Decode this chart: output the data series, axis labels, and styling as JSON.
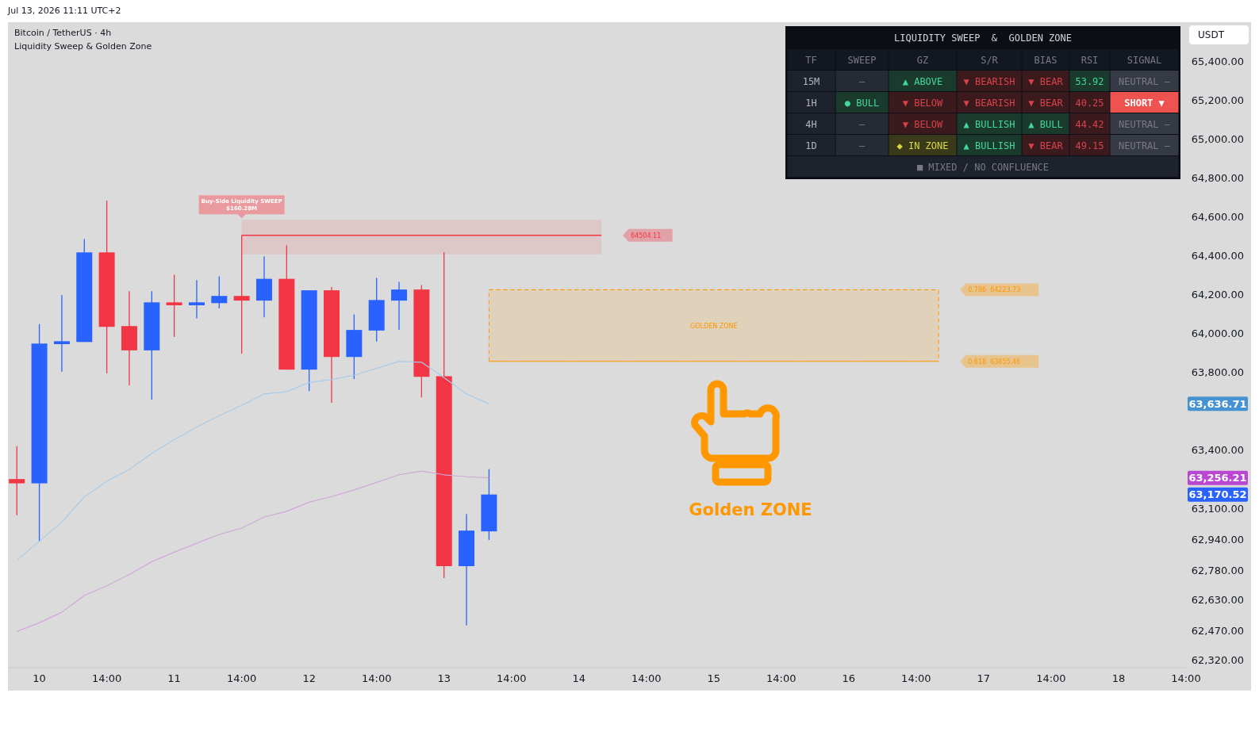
{
  "chart_data": [
    {
      "type": "candlestick",
      "title": "Bitcoin / TetherUS · 4h",
      "subtitle": "Liquidity Sweep & Golden Zone",
      "ylabel": "USDT",
      "categories": [
        null,
        "10",
        null,
        null,
        "14:00",
        null,
        null,
        "11",
        null,
        null,
        "14:00",
        null,
        null,
        "12",
        null,
        null,
        "14:00",
        null,
        null,
        "13",
        null,
        null,
        "14:00",
        null,
        null,
        "14",
        null,
        null,
        "14:00",
        null,
        null,
        "15",
        null,
        null,
        "14:00",
        null,
        null,
        "16",
        null,
        null,
        "14:00",
        null,
        null,
        "17",
        null,
        null,
        "14:00",
        null,
        null,
        "18",
        null,
        null,
        "14:00"
      ],
      "ohlc": [
        [
          63250,
          63419,
          63064,
          63228
        ],
        [
          63228,
          64047,
          62930,
          63947
        ],
        [
          63944,
          64196,
          63802,
          63959
        ],
        [
          63955,
          64485,
          63955,
          64416
        ],
        [
          64416,
          64682,
          63794,
          64033
        ],
        [
          64037,
          64216,
          63732,
          63912
        ],
        [
          63912,
          64216,
          63659,
          64159
        ],
        [
          64159,
          64301,
          63981,
          64144
        ],
        [
          64144,
          64273,
          64077,
          64159
        ],
        [
          64155,
          64293,
          64128,
          64192
        ],
        [
          64192,
          64504,
          63895,
          64168
        ],
        [
          64168,
          64396,
          64082,
          64280
        ],
        [
          64280,
          64452,
          63813,
          63813
        ],
        [
          63813,
          64221,
          63702,
          64221
        ],
        [
          64221,
          64238,
          63642,
          63878
        ],
        [
          63878,
          64097,
          63765,
          64017
        ],
        [
          64014,
          64285,
          63957,
          64171
        ],
        [
          64168,
          64264,
          64017,
          64225
        ],
        [
          64225,
          64248,
          63670,
          63776
        ],
        [
          63779,
          64416,
          62741,
          62802
        ],
        [
          62802,
          63070,
          62497,
          62985
        ],
        [
          62981,
          63301,
          62937,
          63170.52
        ],
        null,
        null,
        null,
        null,
        null,
        null,
        null,
        null,
        null,
        null,
        null,
        null,
        null,
        null,
        null,
        null,
        null,
        null,
        null,
        null,
        null,
        null,
        null,
        null,
        null,
        null,
        null,
        null,
        null,
        null,
        null
      ],
      "colors": [
        "#f23645",
        "#2962ff",
        "#2962ff",
        "#2962ff",
        "#f23645",
        "#f23645",
        "#2962ff",
        "#f23645",
        "#2962ff",
        "#2962ff",
        "#f23645",
        "#2962ff",
        "#f23645",
        "#2962ff",
        "#f23645",
        "#2962ff",
        "#2962ff",
        "#2962ff",
        "#f23645",
        "#f23645",
        "#2962ff",
        "#2962ff",
        null,
        null,
        null,
        null,
        null,
        null,
        null,
        null,
        null,
        null,
        null,
        null,
        null,
        null,
        null,
        null,
        null,
        null,
        null,
        null,
        null,
        null,
        null,
        null,
        null,
        null,
        null,
        null,
        null,
        null,
        null
      ],
      "series": [
        {
          "type": "line",
          "color": "#a8cbe8",
          "values": [
            62832,
            62930,
            63029,
            63158,
            63239,
            63300,
            63382,
            63453,
            63518,
            63576,
            63629,
            63688,
            63699,
            63747,
            63762,
            63784,
            63819,
            63855,
            63851,
            63772,
            63688,
            63636.71,
            null,
            null,
            null,
            null,
            null,
            null,
            null,
            null,
            null,
            null,
            null,
            null,
            null,
            null,
            null,
            null,
            null,
            null,
            null,
            null,
            null,
            null,
            null,
            null,
            null,
            null,
            null,
            null,
            null,
            null,
            null
          ]
        },
        {
          "type": "line",
          "color": "#d0a8d8",
          "values": [
            62466,
            62511,
            62565,
            62651,
            62701,
            62759,
            62825,
            62874,
            62920,
            62965,
            62998,
            63055,
            63084,
            63131,
            63160,
            63194,
            63233,
            63272,
            63291,
            63272,
            63262,
            63256.21,
            null,
            null,
            null,
            null,
            null,
            null,
            null,
            null,
            null,
            null,
            null,
            null,
            null,
            null,
            null,
            null,
            null,
            null,
            null,
            null,
            null,
            null,
            null,
            null,
            null,
            null,
            null,
            null,
            null,
            null,
            null
          ]
        }
      ],
      "ylim": [
        62280,
        65600
      ],
      "yticks": [
        {
          "value": 62320,
          "label": "62,320.00"
        },
        {
          "value": 62470,
          "label": "62,470.00"
        },
        {
          "value": 62630,
          "label": "62,630.00"
        },
        {
          "value": 62780,
          "label": "62,780.00"
        },
        {
          "value": 62940,
          "label": "62,940.00"
        },
        {
          "value": 63100,
          "label": "63,100.00"
        },
        {
          "value": 63400,
          "label": "63,400.00"
        },
        {
          "value": 63800,
          "label": "63,800.00"
        },
        {
          "value": 64000,
          "label": "64,000.00"
        },
        {
          "value": 64200,
          "label": "64,200.00"
        },
        {
          "value": 64400,
          "label": "64,400.00"
        },
        {
          "value": 64600,
          "label": "64,600.00"
        },
        {
          "value": 64800,
          "label": "64,800.00"
        },
        {
          "value": 65000,
          "label": "65,000.00"
        },
        {
          "value": 65200,
          "label": "65,200.00"
        },
        {
          "value": 65400,
          "label": "65,400.00"
        }
      ],
      "ref_lines": [
        {
          "axis": "y",
          "value": 64504.11,
          "label": "64504.11",
          "color": "#f23645"
        },
        {
          "axis": "y",
          "value": 64223.73,
          "label": "0.786  64223.73",
          "color": "#ff9800",
          "line_style": "dashed"
        },
        {
          "axis": "y",
          "value": 63855.46,
          "label": "0.618  63855.46",
          "color": "#ff9800",
          "line_style": "dashed"
        }
      ],
      "bands": [
        {
          "axis": "y",
          "from": 64406,
          "to": 64583,
          "label": "Buy-Side Liquidity SWEEP\n$160.28M",
          "color": "#f23645"
        },
        {
          "axis": "y",
          "from": 63855.46,
          "to": 64223.73,
          "label": "GOLDEN ZONE",
          "color": "#ff9800"
        }
      ],
      "annotations": [
        "Jul 13, 2026 11:11 UTC+2",
        "Golden ZONE",
        "63,170.52",
        "63,636.71",
        "63,256.21"
      ]
    },
    {
      "type": "other",
      "title": "LIQUIDITY SWEEP  &  GOLDEN ZONE",
      "categories": [
        "TF",
        "SWEEP",
        "GZ",
        "S/R",
        "BIAS",
        "RSI",
        "SIGNAL"
      ],
      "y_categories": [
        "15M",
        "1H",
        "4H",
        "1D"
      ],
      "cell_labels": [
        [
          "—",
          "▲ ABOVE",
          "▼ BEARISH",
          "▼ BEAR",
          "53.92",
          "NEUTRAL —"
        ],
        [
          "● BULL",
          "▼ BELOW",
          "▼ BEARISH",
          "▼ BEAR",
          "40.25",
          "SHORT ▼"
        ],
        [
          "—",
          "▼ BELOW",
          "▲ BULLISH",
          "▲ BULL",
          "44.42",
          "NEUTRAL —"
        ],
        [
          "—",
          "◆ IN ZONE",
          "▲ BULLISH",
          "▼ BEAR",
          "49.15",
          "NEUTRAL —"
        ]
      ],
      "colors": [
        [
          "#262a35",
          "#1a3a2e",
          "#3a1a1c",
          "#3a1a1c",
          "#1a3a2e",
          "#363a45"
        ],
        [
          "#1a3a2e",
          "#3a1a1c",
          "#3a1a1c",
          "#3a1a1c",
          "#3a1a1c",
          "#ef5350"
        ],
        [
          "#262a35",
          "#3a1a1c",
          "#1a3a2e",
          "#1a3a2e",
          "#3a1a1c",
          "#363a45"
        ],
        [
          "#262a35",
          "#3a3a1a",
          "#1a3a2e",
          "#3a1a1c",
          "#3a1a1c",
          "#363a45"
        ]
      ],
      "annotations": [
        "■ MIXED / NO CONFLUENCE"
      ]
    }
  ]
}
